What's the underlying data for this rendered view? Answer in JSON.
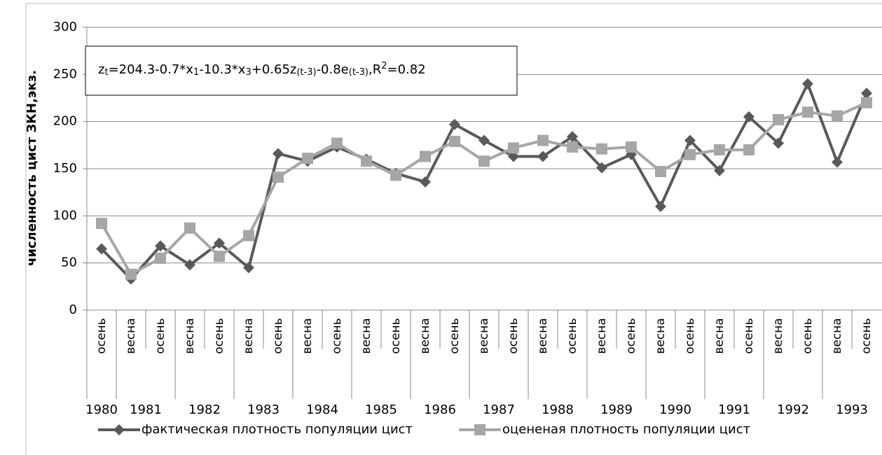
{
  "chart_data": {
    "type": "line",
    "y_label": "численность цист ЗКН,экз.",
    "annotation": [
      {
        "text": "z"
      },
      {
        "sub": "t"
      },
      {
        "text": "=204.3-0.7*x"
      },
      {
        "sub": "1"
      },
      {
        "text": "-10.3*x"
      },
      {
        "sub": "3"
      },
      {
        "text": "+0.65z"
      },
      {
        "sub": "(t-3)"
      },
      {
        "text": "-0.8e"
      },
      {
        "sub": "(t-3)"
      },
      {
        "text": ",R"
      },
      {
        "sup": "2"
      },
      {
        "text": "=0.82"
      }
    ],
    "categories": [
      "осень",
      "весна",
      "осень",
      "весна",
      "осень",
      "весна",
      "осень",
      "весна",
      "осень",
      "весна",
      "осень",
      "весна",
      "осень",
      "весна",
      "осень",
      "весна",
      "осень",
      "весна",
      "осень",
      "весна",
      "осень",
      "весна",
      "осень",
      "весна",
      "осень",
      "весна",
      "осень"
    ],
    "year_groups": [
      {
        "label": "1980",
        "span": 1
      },
      {
        "label": "1981",
        "span": 2
      },
      {
        "label": "1982",
        "span": 2
      },
      {
        "label": "1983",
        "span": 2
      },
      {
        "label": "1984",
        "span": 2
      },
      {
        "label": "1985",
        "span": 2
      },
      {
        "label": "1986",
        "span": 2
      },
      {
        "label": "1987",
        "span": 2
      },
      {
        "label": "1988",
        "span": 2
      },
      {
        "label": "1989",
        "span": 2
      },
      {
        "label": "1990",
        "span": 2
      },
      {
        "label": "1991",
        "span": 2
      },
      {
        "label": "1992",
        "span": 2
      },
      {
        "label": "1993",
        "span": 2
      }
    ],
    "series": [
      {
        "name": "фактическая плотность популяции цист",
        "color": "#595959",
        "marker": "diamond",
        "values": [
          65,
          33,
          68,
          48,
          71,
          45,
          166,
          158,
          173,
          160,
          145,
          136,
          197,
          180,
          163,
          163,
          184,
          151,
          165,
          110,
          180,
          148,
          205,
          177,
          240,
          157,
          230
        ]
      },
      {
        "name": "оцененая плотность популяции цист",
        "color": "#a6a6a6",
        "marker": "square",
        "values": [
          92,
          38,
          55,
          87,
          57,
          79,
          141,
          161,
          177,
          158,
          143,
          163,
          179,
          158,
          172,
          180,
          173,
          171,
          173,
          147,
          165,
          170,
          170,
          202,
          210,
          206,
          220
        ]
      }
    ],
    "ylim": [
      0,
      300
    ],
    "yticks": [
      0,
      50,
      100,
      150,
      200,
      250,
      300
    ],
    "grid": true,
    "legend": "bottom"
  }
}
